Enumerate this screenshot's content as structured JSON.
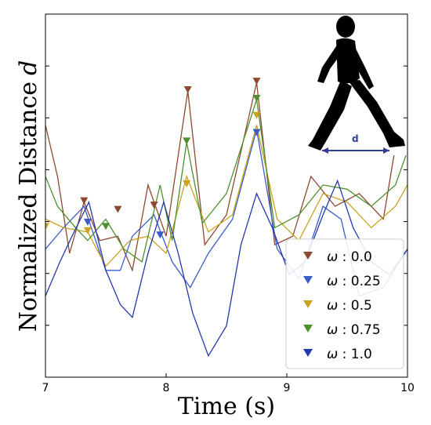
{
  "chart_data": {
    "type": "line",
    "title": "",
    "xlabel": "Time (s)",
    "ylabel": "Normalized Distance",
    "ylabel_var": "d",
    "xlim": [
      7,
      10
    ],
    "ylim": [
      0.15,
      1.0
    ],
    "x_ticks": [
      "7",
      "8",
      "9",
      "10"
    ],
    "grid": false,
    "legend_placement": "bottom-right",
    "inset_label": "d",
    "series": [
      {
        "name": "ω : 0.0",
        "legend_var": "ω",
        "legend_value": ": 0.0",
        "color": "#8b4a2f",
        "x": [
          7.0,
          7.1,
          7.2,
          7.32,
          7.45,
          7.6,
          7.72,
          7.85,
          8.0,
          8.18,
          8.32,
          8.5,
          8.75,
          8.9,
          9.05,
          9.2,
          9.4,
          9.6,
          9.8,
          10.0
        ],
        "y": [
          0.74,
          0.62,
          0.44,
          0.56,
          0.47,
          0.48,
          0.4,
          0.6,
          0.48,
          0.82,
          0.46,
          0.53,
          0.84,
          0.46,
          0.48,
          0.62,
          0.55,
          0.58,
          0.52,
          0.86
        ],
        "markers": [
          [
            7.32,
            0.56
          ],
          [
            7.6,
            0.54
          ],
          [
            7.9,
            0.55
          ],
          [
            8.18,
            0.82
          ],
          [
            8.75,
            0.84
          ]
        ]
      },
      {
        "name": "ω : 0.25",
        "legend_var": "ω",
        "legend_value": ": 0.25",
        "color": "#3b5bc9",
        "x": [
          7.0,
          7.15,
          7.32,
          7.5,
          7.62,
          7.72,
          7.9,
          8.05,
          8.2,
          8.35,
          8.55,
          8.75,
          8.92,
          9.1,
          9.3,
          9.45,
          9.6,
          9.8,
          10.0
        ],
        "y": [
          0.45,
          0.5,
          0.55,
          0.4,
          0.4,
          0.48,
          0.53,
          0.42,
          0.36,
          0.44,
          0.52,
          0.73,
          0.45,
          0.38,
          0.55,
          0.52,
          0.34,
          0.36,
          0.45
        ],
        "markers": [
          [
            7.35,
            0.51
          ],
          [
            7.95,
            0.48
          ],
          [
            8.75,
            0.72
          ]
        ]
      },
      {
        "name": "ω : 0.5",
        "legend_var": "ω",
        "legend_value": ": 0.5",
        "color": "#c9a21e",
        "x": [
          7.0,
          7.15,
          7.35,
          7.5,
          7.7,
          7.85,
          8.0,
          8.17,
          8.35,
          8.55,
          8.75,
          8.92,
          9.1,
          9.3,
          9.5,
          9.7,
          9.9,
          10.0
        ],
        "y": [
          0.52,
          0.5,
          0.49,
          0.41,
          0.47,
          0.48,
          0.44,
          0.62,
          0.49,
          0.53,
          0.74,
          0.52,
          0.47,
          0.58,
          0.56,
          0.5,
          0.55,
          0.6
        ],
        "markers": [
          [
            7.0,
            0.5
          ],
          [
            7.35,
            0.49
          ],
          [
            8.17,
            0.6
          ],
          [
            8.75,
            0.76
          ]
        ]
      },
      {
        "name": "ω : 0.75",
        "legend_var": "ω",
        "legend_value": ": 0.75",
        "color": "#4f8f2f",
        "x": [
          7.0,
          7.1,
          7.25,
          7.35,
          7.5,
          7.65,
          7.8,
          7.95,
          8.05,
          8.17,
          8.3,
          8.5,
          8.75,
          8.9,
          9.1,
          9.3,
          9.5,
          9.7,
          9.9,
          10.0
        ],
        "y": [
          0.62,
          0.55,
          0.5,
          0.47,
          0.52,
          0.45,
          0.42,
          0.6,
          0.47,
          0.7,
          0.51,
          0.58,
          0.8,
          0.5,
          0.53,
          0.6,
          0.59,
          0.55,
          0.6,
          0.68
        ],
        "markers": [
          [
            7.5,
            0.5
          ],
          [
            8.17,
            0.7
          ],
          [
            8.75,
            0.8
          ]
        ]
      },
      {
        "name": "ω : 1.0",
        "legend_var": "ω",
        "legend_value": ": 1.0",
        "color": "#2436b0",
        "x": [
          7.0,
          7.12,
          7.22,
          7.36,
          7.5,
          7.62,
          7.72,
          7.85,
          7.98,
          8.1,
          8.22,
          8.35,
          8.5,
          8.62,
          8.75,
          8.88,
          9.02,
          9.15,
          9.3,
          9.42,
          9.55,
          9.7,
          9.85,
          10.0
        ],
        "y": [
          0.34,
          0.42,
          0.48,
          0.56,
          0.4,
          0.32,
          0.29,
          0.44,
          0.56,
          0.44,
          0.3,
          0.2,
          0.27,
          0.46,
          0.58,
          0.5,
          0.39,
          0.42,
          0.53,
          0.61,
          0.5,
          0.42,
          0.39,
          0.45
        ],
        "markers": []
      }
    ]
  },
  "legend": {
    "items": [
      {
        "var": "ω",
        "value": ": 0.0"
      },
      {
        "var": "ω",
        "value": ": 0.25"
      },
      {
        "var": "ω",
        "value": ": 0.5"
      },
      {
        "var": "ω",
        "value": ": 0.75"
      },
      {
        "var": "ω",
        "value": ": 1.0"
      }
    ]
  }
}
